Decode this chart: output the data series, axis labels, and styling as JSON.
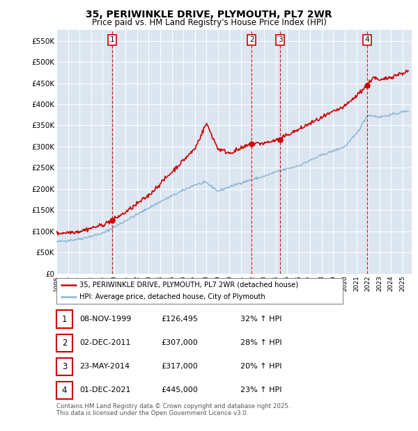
{
  "title": "35, PERIWINKLE DRIVE, PLYMOUTH, PL7 2WR",
  "subtitle": "Price paid vs. HM Land Registry's House Price Index (HPI)",
  "ylim": [
    0,
    575000
  ],
  "yticks": [
    0,
    50000,
    100000,
    150000,
    200000,
    250000,
    300000,
    350000,
    400000,
    450000,
    500000,
    550000
  ],
  "ytick_labels": [
    "£0",
    "£50K",
    "£100K",
    "£150K",
    "£200K",
    "£250K",
    "£300K",
    "£350K",
    "£400K",
    "£450K",
    "£500K",
    "£550K"
  ],
  "plot_bg_color": "#dce6f1",
  "red_line_color": "#cc0000",
  "blue_line_color": "#8ab4d4",
  "sale_markers": [
    {
      "date_num": 1999.85,
      "value": 126495,
      "label": "1"
    },
    {
      "date_num": 2011.92,
      "value": 307000,
      "label": "2"
    },
    {
      "date_num": 2014.39,
      "value": 317000,
      "label": "3"
    },
    {
      "date_num": 2021.92,
      "value": 445000,
      "label": "4"
    }
  ],
  "legend_line1": "35, PERIWINKLE DRIVE, PLYMOUTH, PL7 2WR (detached house)",
  "legend_line2": "HPI: Average price, detached house, City of Plymouth",
  "table_rows": [
    {
      "num": "1",
      "date": "08-NOV-1999",
      "price": "£126,495",
      "hpi": "32% ↑ HPI"
    },
    {
      "num": "2",
      "date": "02-DEC-2011",
      "price": "£307,000",
      "hpi": "28% ↑ HPI"
    },
    {
      "num": "3",
      "date": "23-MAY-2014",
      "price": "£317,000",
      "hpi": "20% ↑ HPI"
    },
    {
      "num": "4",
      "date": "01-DEC-2021",
      "price": "£445,000",
      "hpi": "23% ↑ HPI"
    }
  ],
  "footer": "Contains HM Land Registry data © Crown copyright and database right 2025.\nThis data is licensed under the Open Government Licence v3.0.",
  "grid_color": "#ffffff",
  "dashed_color": "#cc0000"
}
